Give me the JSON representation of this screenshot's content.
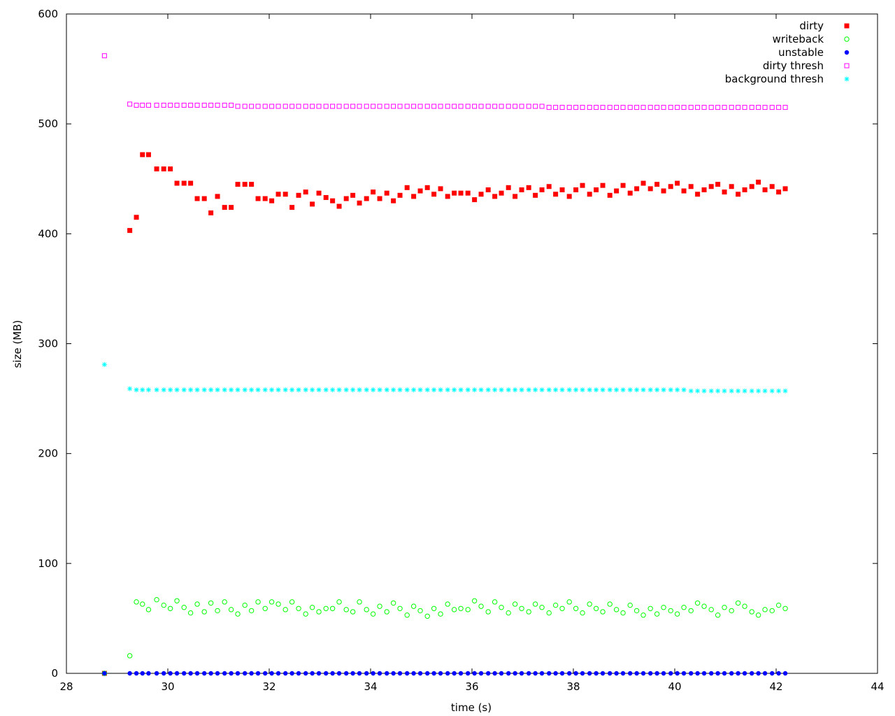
{
  "chart_data": {
    "type": "scatter",
    "title": "",
    "xlabel": "time (s)",
    "ylabel": "size (MB)",
    "xlim": [
      28,
      44
    ],
    "ylim": [
      0,
      600
    ],
    "xticks": [
      "28",
      "30",
      "32",
      "34",
      "36",
      "38",
      "40",
      "42",
      "44"
    ],
    "yticks": [
      "0",
      "100",
      "200",
      "300",
      "400",
      "500",
      "600"
    ],
    "grid": false,
    "legend_position": "top-right",
    "x": [
      28.75,
      29.25,
      29.38,
      29.5,
      29.62,
      29.78,
      29.92,
      30.05,
      30.18,
      30.32,
      30.45,
      30.58,
      30.72,
      30.85,
      30.98,
      31.12,
      31.25,
      31.38,
      31.52,
      31.65,
      31.78,
      31.92,
      32.05,
      32.18,
      32.32,
      32.45,
      32.58,
      32.72,
      32.85,
      32.98,
      33.12,
      33.25,
      33.38,
      33.52,
      33.65,
      33.78,
      33.92,
      34.05,
      34.18,
      34.32,
      34.45,
      34.58,
      34.72,
      34.85,
      34.98,
      35.12,
      35.25,
      35.38,
      35.52,
      35.65,
      35.78,
      35.92,
      36.05,
      36.18,
      36.32,
      36.45,
      36.58,
      36.72,
      36.85,
      36.98,
      37.12,
      37.25,
      37.38,
      37.52,
      37.65,
      37.78,
      37.92,
      38.05,
      38.18,
      38.32,
      38.45,
      38.58,
      38.72,
      38.85,
      38.98,
      39.12,
      39.25,
      39.38,
      39.52,
      39.65,
      39.78,
      39.92,
      40.05,
      40.18,
      40.32,
      40.45,
      40.58,
      40.72,
      40.85,
      40.98,
      41.12,
      41.25,
      41.38,
      41.52,
      41.65,
      41.78,
      41.92,
      42.05,
      42.18
    ],
    "series": [
      {
        "name": "dirty",
        "marker": "filled-square",
        "color": "#ff0000",
        "values": [
          0,
          403,
          415,
          472,
          472,
          459,
          459,
          459,
          446,
          446,
          446,
          432,
          432,
          419,
          434,
          424,
          424,
          445,
          445,
          445,
          432,
          432,
          430,
          436,
          436,
          424,
          435,
          438,
          427,
          437,
          433,
          430,
          425,
          432,
          435,
          428,
          432,
          438,
          432,
          437,
          430,
          435,
          442,
          434,
          439,
          442,
          436,
          441,
          434,
          437,
          437,
          437,
          431,
          436,
          440,
          434,
          437,
          442,
          434,
          440,
          442,
          435,
          440,
          443,
          436,
          440,
          434,
          440,
          444,
          436,
          440,
          444,
          435,
          439,
          444,
          437,
          441,
          446,
          441,
          445,
          439,
          443,
          446,
          439,
          443,
          436,
          440,
          443,
          445,
          438,
          443,
          436,
          440,
          443,
          447,
          440,
          443,
          438,
          441
        ]
      },
      {
        "name": "writeback",
        "marker": "open-circle",
        "color": "#00ff00",
        "values": [
          0,
          16,
          65,
          63,
          58,
          67,
          62,
          59,
          66,
          60,
          55,
          63,
          56,
          64,
          57,
          65,
          58,
          54,
          62,
          57,
          65,
          59,
          65,
          63,
          58,
          65,
          59,
          54,
          60,
          56,
          59,
          59,
          65,
          58,
          56,
          65,
          58,
          54,
          61,
          56,
          64,
          59,
          53,
          61,
          57,
          52,
          59,
          54,
          63,
          58,
          59,
          58,
          66,
          61,
          56,
          65,
          60,
          55,
          63,
          59,
          56,
          63,
          60,
          55,
          62,
          59,
          65,
          59,
          55,
          63,
          59,
          56,
          63,
          58,
          55,
          62,
          57,
          53,
          59,
          54,
          60,
          57,
          54,
          60,
          57,
          64,
          61,
          58,
          53,
          60,
          57,
          64,
          61,
          56,
          53,
          58,
          57,
          62,
          59
        ]
      },
      {
        "name": "unstable",
        "marker": "filled-circle",
        "color": "#0000ff",
        "values": [
          0,
          0,
          0,
          0,
          0,
          0,
          0,
          0,
          0,
          0,
          0,
          0,
          0,
          0,
          0,
          0,
          0,
          0,
          0,
          0,
          0,
          0,
          0,
          0,
          0,
          0,
          0,
          0,
          0,
          0,
          0,
          0,
          0,
          0,
          0,
          0,
          0,
          0,
          0,
          0,
          0,
          0,
          0,
          0,
          0,
          0,
          0,
          0,
          0,
          0,
          0,
          0,
          0,
          0,
          0,
          0,
          0,
          0,
          0,
          0,
          0,
          0,
          0,
          0,
          0,
          0,
          0,
          0,
          0,
          0,
          0,
          0,
          0,
          0,
          0,
          0,
          0,
          0,
          0,
          0,
          0,
          0,
          0,
          0,
          0,
          0,
          0,
          0,
          0,
          0,
          0,
          0,
          0,
          0,
          0,
          0,
          0,
          0,
          0
        ]
      },
      {
        "name": "dirty thresh",
        "marker": "open-square",
        "color": "#ff00ff",
        "values": [
          562,
          518,
          517,
          517,
          517,
          517,
          517,
          517,
          517,
          517,
          517,
          517,
          517,
          517,
          517,
          517,
          517,
          516,
          516,
          516,
          516,
          516,
          516,
          516,
          516,
          516,
          516,
          516,
          516,
          516,
          516,
          516,
          516,
          516,
          516,
          516,
          516,
          516,
          516,
          516,
          516,
          516,
          516,
          516,
          516,
          516,
          516,
          516,
          516,
          516,
          516,
          516,
          516,
          516,
          516,
          516,
          516,
          516,
          516,
          516,
          516,
          516,
          516,
          515,
          515,
          515,
          515,
          515,
          515,
          515,
          515,
          515,
          515,
          515,
          515,
          515,
          515,
          515,
          515,
          515,
          515,
          515,
          515,
          515,
          515,
          515,
          515,
          515,
          515,
          515,
          515,
          515,
          515,
          515,
          515,
          515,
          515,
          515,
          515
        ]
      },
      {
        "name": "background thresh",
        "marker": "asterisk",
        "color": "#00ffff",
        "values": [
          281,
          259,
          258,
          258,
          258,
          258,
          258,
          258,
          258,
          258,
          258,
          258,
          258,
          258,
          258,
          258,
          258,
          258,
          258,
          258,
          258,
          258,
          258,
          258,
          258,
          258,
          258,
          258,
          258,
          258,
          258,
          258,
          258,
          258,
          258,
          258,
          258,
          258,
          258,
          258,
          258,
          258,
          258,
          258,
          258,
          258,
          258,
          258,
          258,
          258,
          258,
          258,
          258,
          258,
          258,
          258,
          258,
          258,
          258,
          258,
          258,
          258,
          258,
          258,
          258,
          258,
          258,
          258,
          258,
          258,
          258,
          258,
          258,
          258,
          258,
          258,
          258,
          258,
          258,
          258,
          258,
          258,
          258,
          258,
          257,
          257,
          257,
          257,
          257,
          257,
          257,
          257,
          257,
          257,
          257,
          257,
          257,
          257,
          257
        ]
      }
    ]
  }
}
